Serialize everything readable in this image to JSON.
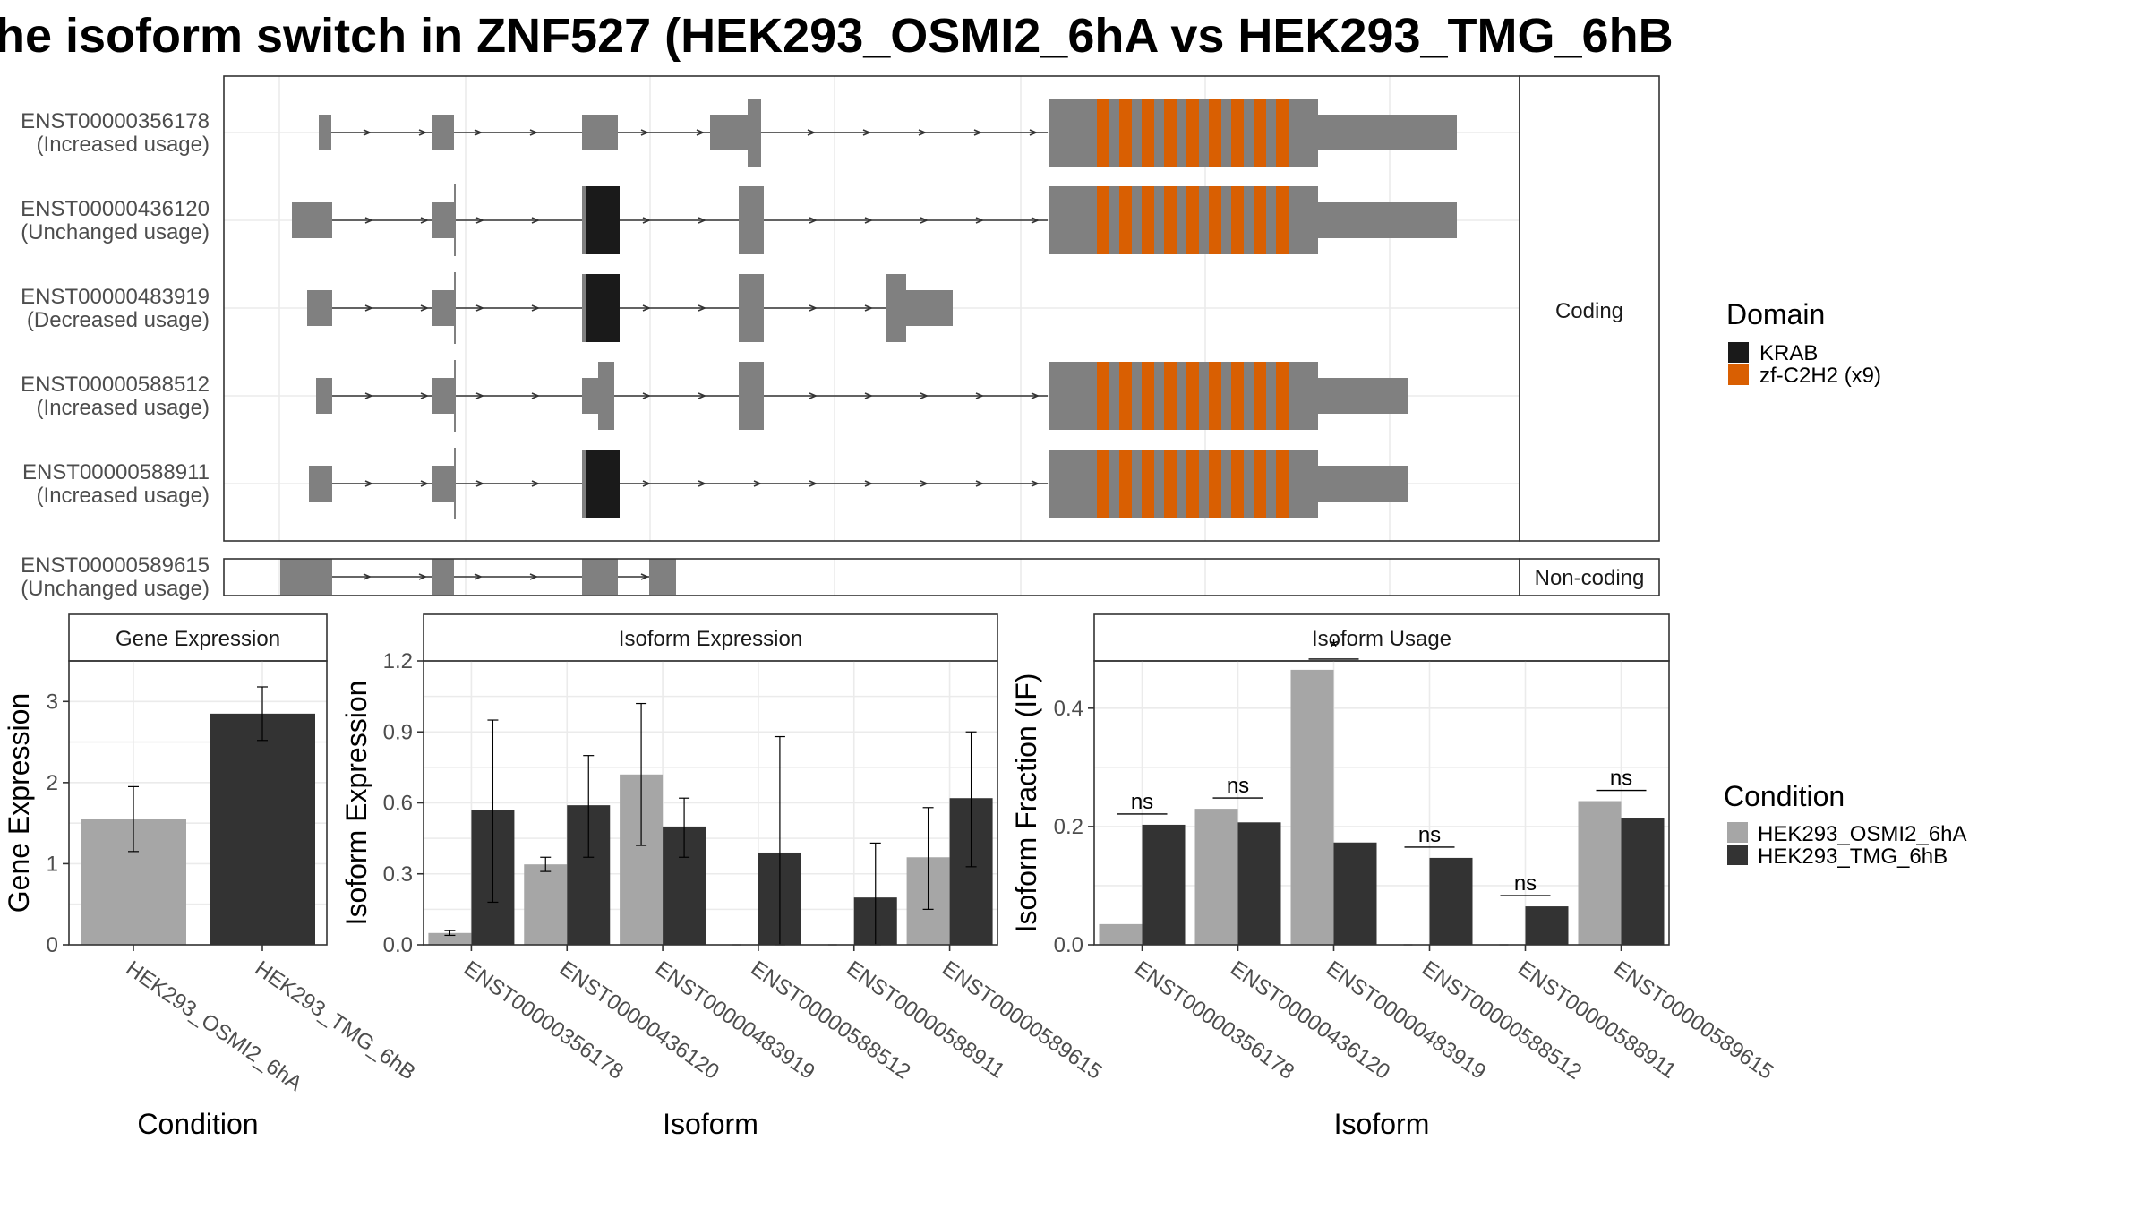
{
  "figure": {
    "title": "he isoform switch in ZNF527 (HEK293_OSMI2_6hA vs HEK293_TMG_6hB",
    "legend_domain_title": "Domain",
    "legend_domain": [
      {
        "label": "KRAB",
        "color": "#1a1a1a"
      },
      {
        "label": "zf-C2H2 (x9)",
        "color": "#d95f02"
      }
    ],
    "legend_condition_title": "Condition",
    "legend_condition": [
      {
        "label": "HEK293_OSMI2_6hA",
        "color": "#a6a6a6"
      },
      {
        "label": "HEK293_TMG_6hB",
        "color": "#333333"
      }
    ],
    "facet_coding": "Coding",
    "facet_noncoding": "Non-coding"
  },
  "chart_data": [
    {
      "type": "gene-structure",
      "isoforms": [
        {
          "id": "ENST00000356178",
          "usage": "(Increased usage)",
          "group": "Coding"
        },
        {
          "id": "ENST00000436120",
          "usage": "(Unchanged usage)",
          "group": "Coding"
        },
        {
          "id": "ENST00000483919",
          "usage": "(Decreased usage)",
          "group": "Coding"
        },
        {
          "id": "ENST00000588512",
          "usage": "(Increased usage)",
          "group": "Coding"
        },
        {
          "id": "ENST00000588911",
          "usage": "(Increased usage)",
          "group": "Coding"
        },
        {
          "id": "ENST00000589615",
          "usage": "(Unchanged usage)",
          "group": "Non-coding"
        }
      ]
    },
    {
      "type": "bar",
      "title": "Gene Expression",
      "xlabel": "Condition",
      "ylabel": "Gene Expression",
      "ylim": [
        0,
        3.5
      ],
      "yticks": [
        "0",
        "1",
        "2",
        "3"
      ],
      "categories": [
        "HEK293_OSMI2_6hA",
        "HEK293_TMG_6hB"
      ],
      "values": [
        1.55,
        2.85
      ],
      "errors": [
        [
          1.15,
          1.95
        ],
        [
          2.52,
          3.18
        ]
      ]
    },
    {
      "type": "bar",
      "title": "Isoform Expression",
      "xlabel": "Isoform",
      "ylabel": "Isoform Expression",
      "ylim": [
        0,
        1.2
      ],
      "yticks": [
        "0.0",
        "0.3",
        "0.6",
        "0.9",
        "1.2"
      ],
      "categories": [
        "ENST00000356178",
        "ENST00000436120",
        "ENST00000483919",
        "ENST00000588512",
        "ENST00000588911",
        "ENST00000589615"
      ],
      "series": [
        {
          "name": "HEK293_OSMI2_6hA",
          "values": [
            0.05,
            0.34,
            0.72,
            0.0,
            0.0,
            0.37
          ],
          "errors": [
            [
              0.04,
              0.06
            ],
            [
              0.31,
              0.37
            ],
            [
              0.42,
              1.02
            ],
            [
              0.0,
              0.0
            ],
            [
              0.0,
              0.0
            ],
            [
              0.15,
              0.58
            ]
          ]
        },
        {
          "name": "HEK293_TMG_6hB",
          "values": [
            0.57,
            0.59,
            0.5,
            0.39,
            0.2,
            0.62
          ],
          "errors": [
            [
              0.18,
              0.95
            ],
            [
              0.37,
              0.8
            ],
            [
              0.37,
              0.62
            ],
            [
              0.0,
              0.88
            ],
            [
              0.0,
              0.43
            ],
            [
              0.33,
              0.9
            ]
          ]
        }
      ]
    },
    {
      "type": "bar",
      "title": "Isoform Usage",
      "xlabel": "Isoform",
      "ylabel": "Isoform Fraction (IF)",
      "ylim": [
        0,
        0.48
      ],
      "yticks": [
        "0.0",
        "0.2",
        "0.4"
      ],
      "categories": [
        "ENST00000356178",
        "ENST00000436120",
        "ENST00000483919",
        "ENST00000588512",
        "ENST00000588911",
        "ENST00000589615"
      ],
      "series": [
        {
          "name": "HEK293_OSMI2_6hA",
          "values": [
            0.035,
            0.23,
            0.465,
            0.0,
            0.0,
            0.243
          ]
        },
        {
          "name": "HEK293_TMG_6hB",
          "values": [
            0.203,
            0.207,
            0.173,
            0.147,
            0.065,
            0.215
          ]
        }
      ],
      "significance": [
        "ns",
        "ns",
        "*",
        "ns",
        "ns",
        "ns"
      ]
    }
  ]
}
